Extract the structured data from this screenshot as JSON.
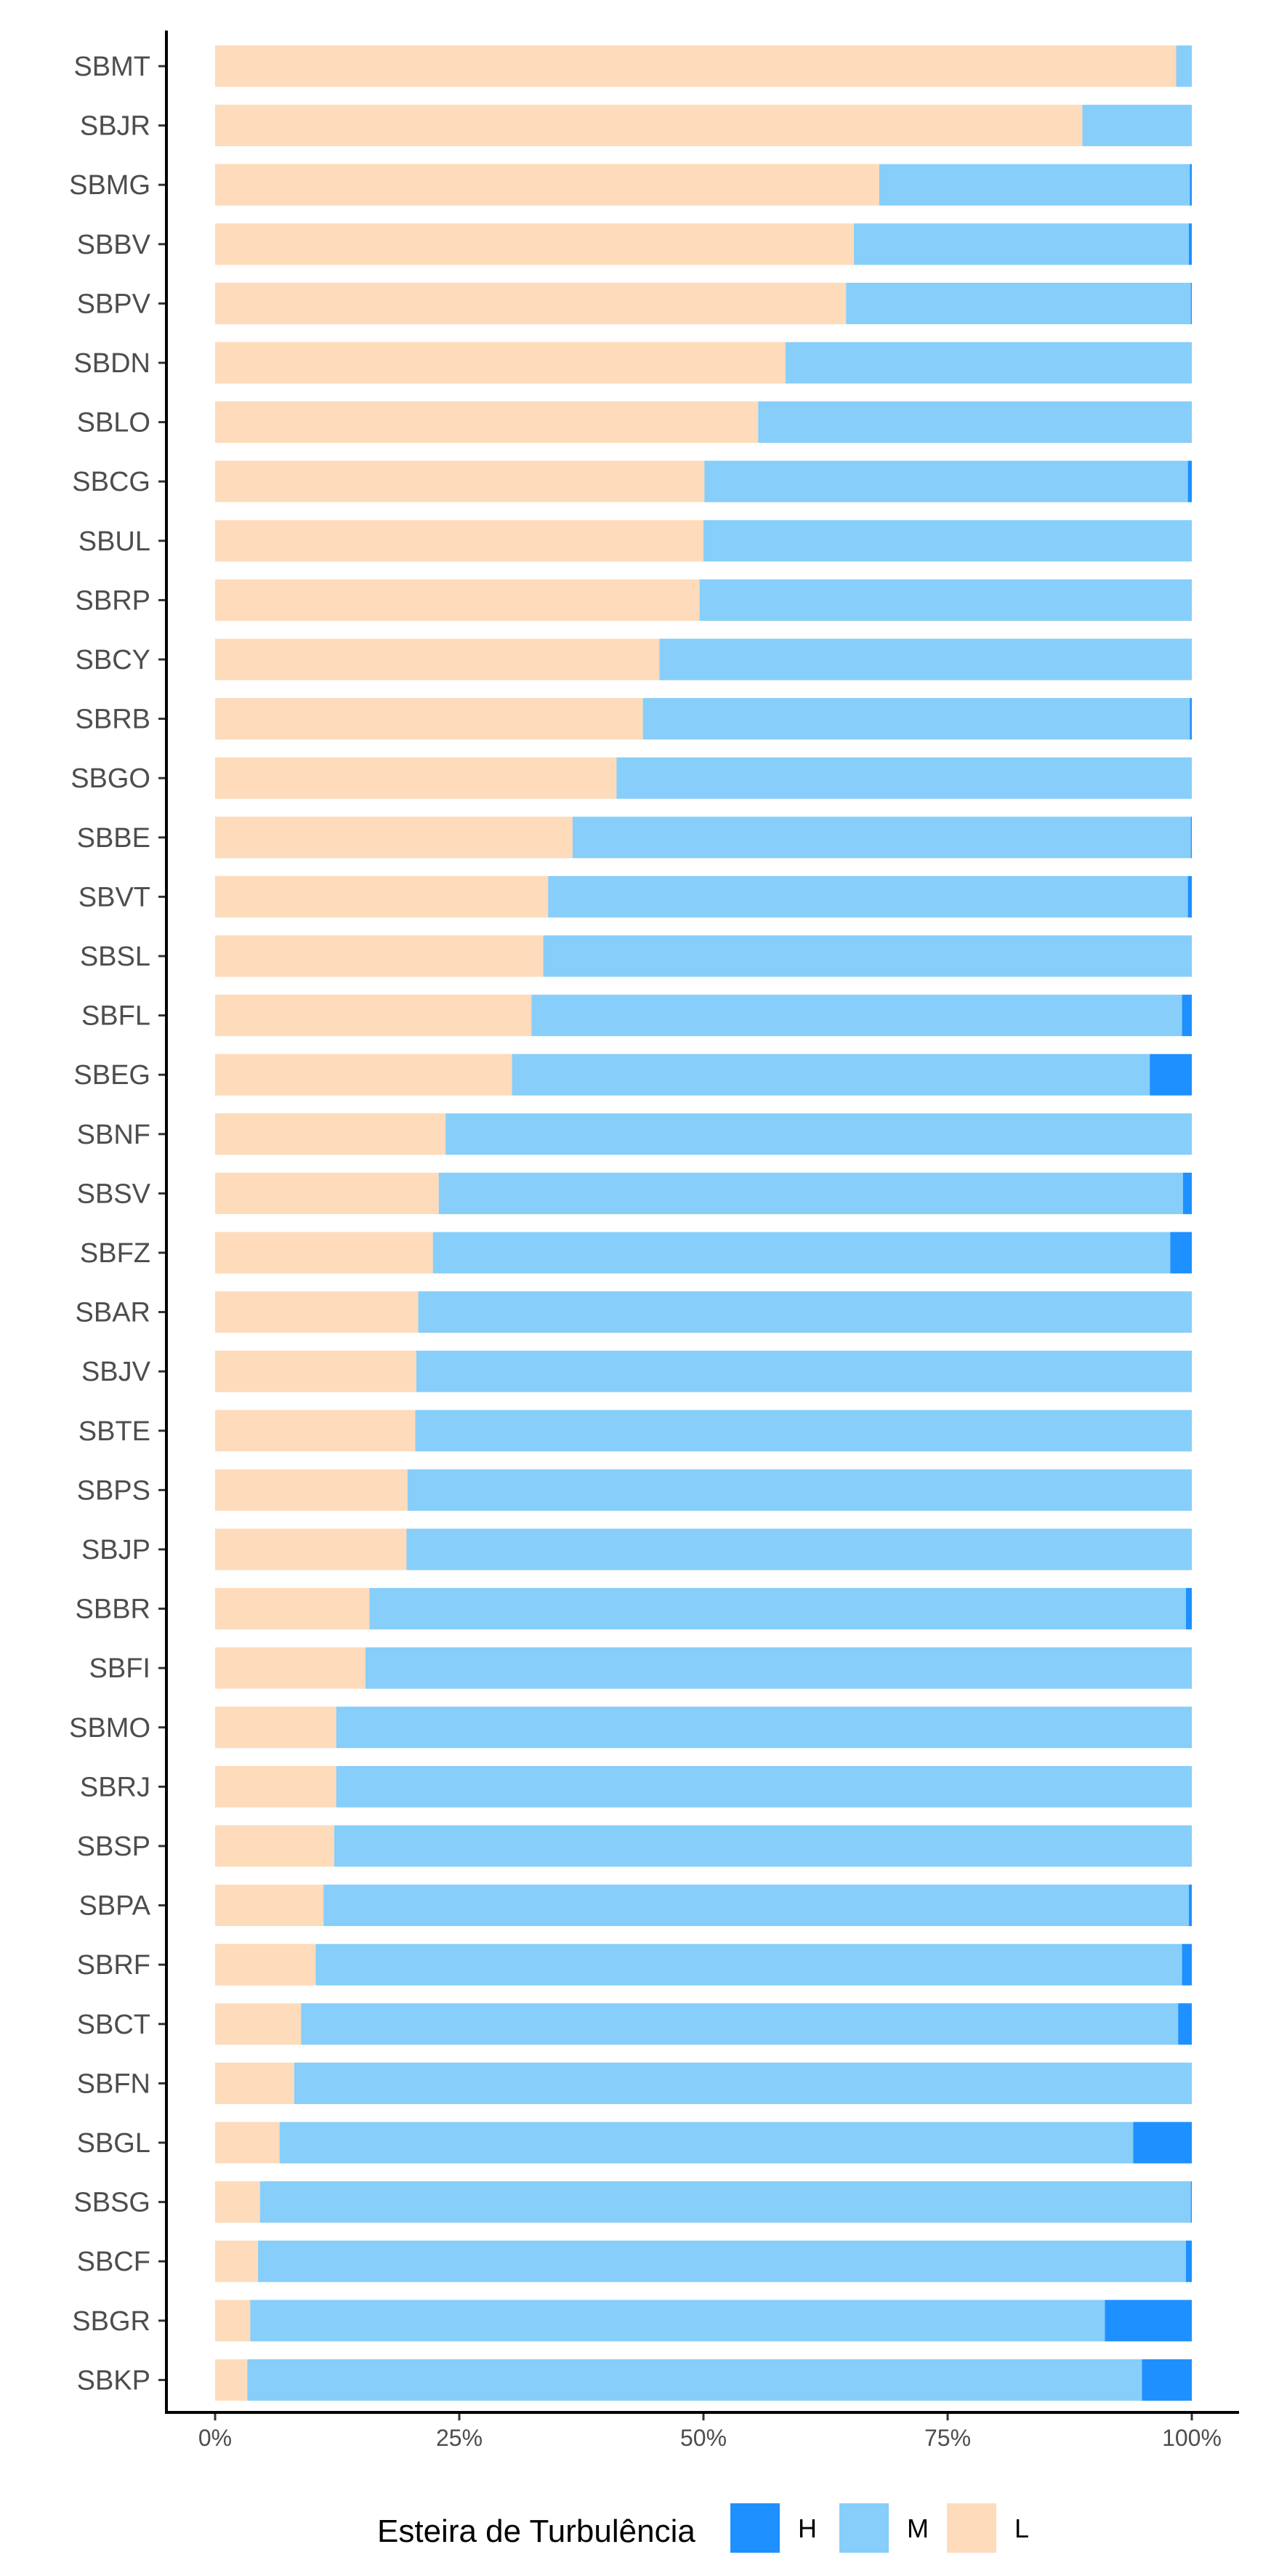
{
  "chart_data": {
    "type": "bar",
    "orientation": "horizontal",
    "stacked": "percent",
    "title": "",
    "xlabel": "",
    "ylabel": "",
    "xlim": [
      0,
      100
    ],
    "x_tick_labels": [
      "0%",
      "25%",
      "50%",
      "75%",
      "100%"
    ],
    "x_tick_values": [
      0,
      25,
      50,
      75,
      100
    ],
    "grid": false,
    "legend_position": "bottom",
    "legend_title": "Esteira de Turbulência",
    "categories": [
      "SBMT",
      "SBJR",
      "SBMG",
      "SBBV",
      "SBPV",
      "SBDN",
      "SBLO",
      "SBCG",
      "SBUL",
      "SBRP",
      "SBCY",
      "SBRB",
      "SBGO",
      "SBBE",
      "SBVT",
      "SBSL",
      "SBFL",
      "SBEG",
      "SBNF",
      "SBSV",
      "SBFZ",
      "SBAR",
      "SBJV",
      "SBTE",
      "SBPS",
      "SBJP",
      "SBBR",
      "SBFI",
      "SBMO",
      "SBRJ",
      "SBSP",
      "SBPA",
      "SBRF",
      "SBCT",
      "SBFN",
      "SBGL",
      "SBSG",
      "SBCF",
      "SBGR",
      "SBKP"
    ],
    "series": [
      {
        "name": "L",
        "color": "#FDDBBB",
        "values": [
          98.4,
          88.8,
          68.0,
          65.4,
          64.6,
          58.4,
          55.6,
          50.1,
          50.0,
          49.6,
          45.5,
          43.8,
          41.1,
          36.6,
          34.1,
          33.6,
          32.4,
          30.4,
          23.6,
          22.9,
          22.3,
          20.8,
          20.6,
          20.5,
          19.7,
          19.6,
          15.8,
          15.4,
          12.4,
          12.4,
          12.2,
          11.1,
          10.3,
          8.8,
          8.1,
          6.6,
          4.6,
          4.4,
          3.6,
          3.3
        ]
      },
      {
        "name": "M",
        "color": "#87CEFA",
        "values": [
          1.6,
          11.2,
          31.8,
          34.3,
          35.3,
          41.6,
          44.4,
          49.5,
          50.0,
          50.4,
          54.5,
          56.0,
          58.9,
          63.3,
          65.5,
          66.4,
          66.6,
          65.3,
          76.4,
          76.2,
          75.5,
          79.2,
          79.4,
          79.5,
          80.3,
          80.4,
          83.6,
          84.6,
          87.6,
          87.6,
          87.8,
          88.6,
          88.7,
          89.8,
          91.9,
          87.4,
          95.3,
          95.0,
          87.5,
          91.6
        ]
      },
      {
        "name": "H",
        "color": "#1E90FF",
        "values": [
          0,
          0,
          0.2,
          0.3,
          0.1,
          0,
          0,
          0.4,
          0,
          0,
          0,
          0.2,
          0,
          0.1,
          0.4,
          0,
          1.0,
          4.3,
          0,
          0.9,
          2.2,
          0,
          0,
          0,
          0,
          0,
          0.6,
          0,
          0,
          0,
          0,
          0.3,
          1.0,
          1.4,
          0,
          6.0,
          0.1,
          0.6,
          8.9,
          5.1
        ]
      }
    ],
    "legend_order": [
      "H",
      "M",
      "L"
    ]
  }
}
